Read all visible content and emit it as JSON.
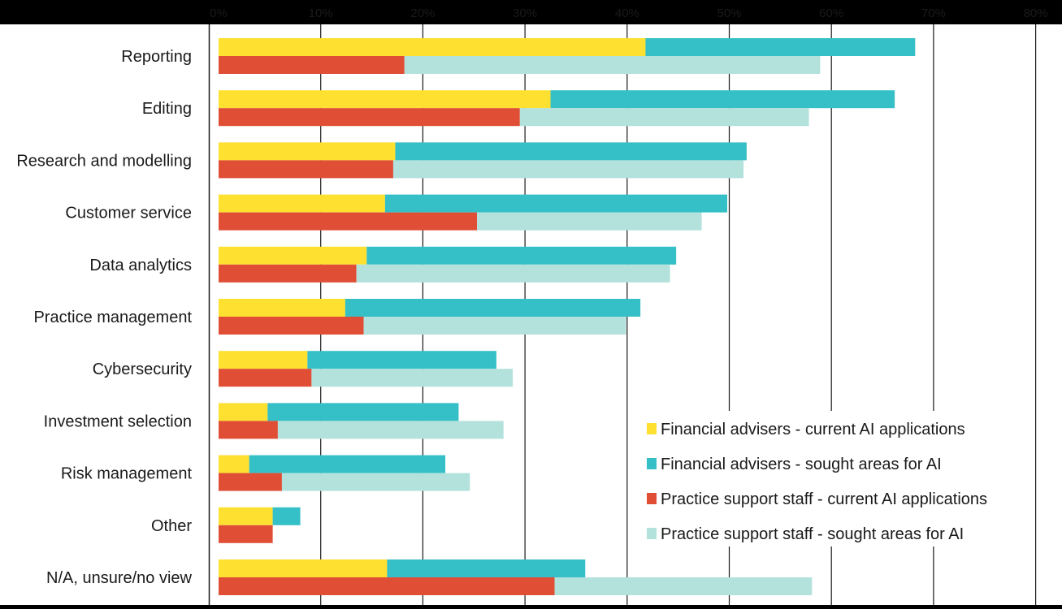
{
  "colors": {
    "fa_current": "#FDE030",
    "fa_sought": "#35BFC6",
    "ps_current": "#E04E36",
    "ps_sought": "#B3E1DC",
    "background": "#000000",
    "plot_bg": "#FFFFFF",
    "gridline": "#1a1a1a"
  },
  "chart_data": {
    "type": "bar",
    "orientation": "horizontal",
    "stacked": true,
    "title": "",
    "xlabel": "",
    "ylabel": "",
    "xlim": [
      0,
      80
    ],
    "xticks": [
      0,
      10,
      20,
      30,
      40,
      50,
      60,
      70,
      80
    ],
    "grid": true,
    "legend_position": "bottom-right",
    "categories": [
      "Reporting",
      "Editing",
      "Research and modelling",
      "Customer service",
      "Data analytics",
      "Practice management",
      "Cybersecurity",
      "Investment selection",
      "Risk management",
      "Other",
      "N/A, unsure/no view"
    ],
    "series": [
      {
        "name": "Financial advisers - current AI applications",
        "group": "Financial advisers",
        "color_key": "fa_current",
        "values": [
          41.8,
          32.5,
          17.3,
          16.3,
          14.5,
          12.4,
          8.7,
          4.8,
          3.0,
          5.3,
          16.5
        ]
      },
      {
        "name": "Financial advisers - sought areas for AI",
        "group": "Financial advisers",
        "color_key": "fa_sought",
        "values": [
          26.4,
          33.7,
          34.4,
          33.5,
          30.3,
          28.9,
          18.5,
          18.7,
          19.2,
          2.7,
          19.4
        ]
      },
      {
        "name": "Practice support staff - current AI applications",
        "group": "Practice support staff",
        "color_key": "ps_current",
        "values": [
          18.2,
          29.5,
          17.1,
          25.3,
          13.5,
          14.2,
          9.1,
          5.8,
          6.2,
          5.3,
          32.9
        ]
      },
      {
        "name": "Practice support staff - sought areas for AI",
        "group": "Practice support staff",
        "color_key": "ps_sought",
        "values": [
          40.7,
          28.3,
          34.3,
          22.0,
          30.7,
          25.7,
          19.7,
          22.1,
          18.4,
          0,
          25.2
        ]
      }
    ]
  }
}
